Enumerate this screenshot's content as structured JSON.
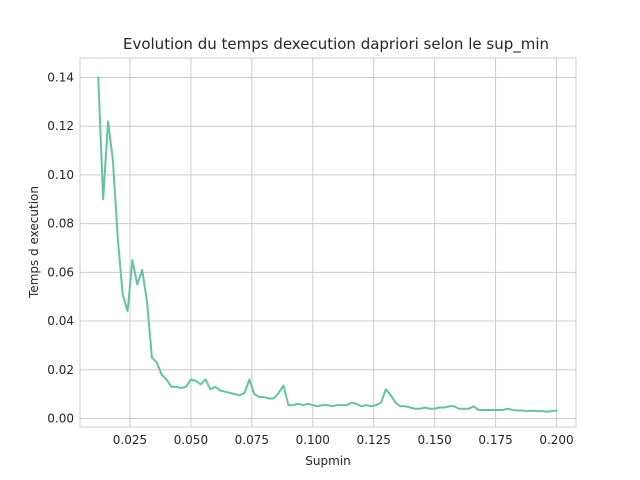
{
  "chart_data": {
    "type": "line",
    "title": "Evolution du temps dexecution dapriori selon le sup_min",
    "xlabel": "Supmin",
    "ylabel": "Temps d execution",
    "xlim": [
      0.0045,
      0.208
    ],
    "ylim": [
      -0.0035,
      0.148
    ],
    "grid": true,
    "line_color": "#66c2a5",
    "x_ticks": [
      0.025,
      0.05,
      0.075,
      0.1,
      0.125,
      0.15,
      0.175,
      0.2
    ],
    "x_tick_labels": [
      "0.025",
      "0.050",
      "0.075",
      "0.100",
      "0.125",
      "0.150",
      "0.175",
      "0.200"
    ],
    "y_ticks": [
      0.0,
      0.02,
      0.04,
      0.06,
      0.08,
      0.1,
      0.12,
      0.14
    ],
    "y_tick_labels": [
      "0.00",
      "0.02",
      "0.04",
      "0.06",
      "0.08",
      "0.10",
      "0.12",
      "0.14"
    ],
    "x": [
      0.012,
      0.014,
      0.016,
      0.018,
      0.02,
      0.022,
      0.024,
      0.026,
      0.028,
      0.03,
      0.032,
      0.034,
      0.036,
      0.038,
      0.04,
      0.042,
      0.044,
      0.046,
      0.048,
      0.05,
      0.052,
      0.054,
      0.056,
      0.058,
      0.06,
      0.062,
      0.064,
      0.066,
      0.068,
      0.07,
      0.072,
      0.074,
      0.076,
      0.078,
      0.08,
      0.082,
      0.084,
      0.086,
      0.088,
      0.09,
      0.092,
      0.094,
      0.096,
      0.098,
      0.1,
      0.102,
      0.104,
      0.106,
      0.108,
      0.11,
      0.112,
      0.114,
      0.116,
      0.118,
      0.12,
      0.122,
      0.124,
      0.126,
      0.128,
      0.13,
      0.132,
      0.134,
      0.136,
      0.138,
      0.14,
      0.142,
      0.144,
      0.146,
      0.148,
      0.15,
      0.152,
      0.154,
      0.156,
      0.158,
      0.16,
      0.162,
      0.164,
      0.166,
      0.168,
      0.17,
      0.172,
      0.174,
      0.176,
      0.178,
      0.18,
      0.182,
      0.184,
      0.186,
      0.188,
      0.19,
      0.192,
      0.194,
      0.196,
      0.198,
      0.2
    ],
    "series": [
      {
        "values": [
          0.14,
          0.09,
          0.122,
          0.106,
          0.074,
          0.051,
          0.044,
          0.065,
          0.055,
          0.061,
          0.048,
          0.025,
          0.023,
          0.018,
          0.016,
          0.013,
          0.013,
          0.0125,
          0.013,
          0.016,
          0.0155,
          0.014,
          0.016,
          0.012,
          0.013,
          0.0115,
          0.011,
          0.0105,
          0.01,
          0.0095,
          0.0105,
          0.016,
          0.01,
          0.0088,
          0.0088,
          0.0082,
          0.0082,
          0.0105,
          0.0135,
          0.0055,
          0.0055,
          0.006,
          0.0055,
          0.006,
          0.0055,
          0.005,
          0.0055,
          0.0055,
          0.005,
          0.0055,
          0.0055,
          0.0055,
          0.0065,
          0.006,
          0.005,
          0.0055,
          0.005,
          0.0055,
          0.0065,
          0.012,
          0.0095,
          0.0065,
          0.005,
          0.005,
          0.0045,
          0.004,
          0.004,
          0.0045,
          0.004,
          0.004,
          0.0045,
          0.0045,
          0.005,
          0.005,
          0.004,
          0.004,
          0.004,
          0.005,
          0.0035,
          0.0035,
          0.0035,
          0.0035,
          0.0035,
          0.0035,
          0.004,
          0.0035,
          0.0033,
          0.0033,
          0.003,
          0.0032,
          0.003,
          0.003,
          0.0028,
          0.003,
          0.0032
        ]
      }
    ]
  }
}
